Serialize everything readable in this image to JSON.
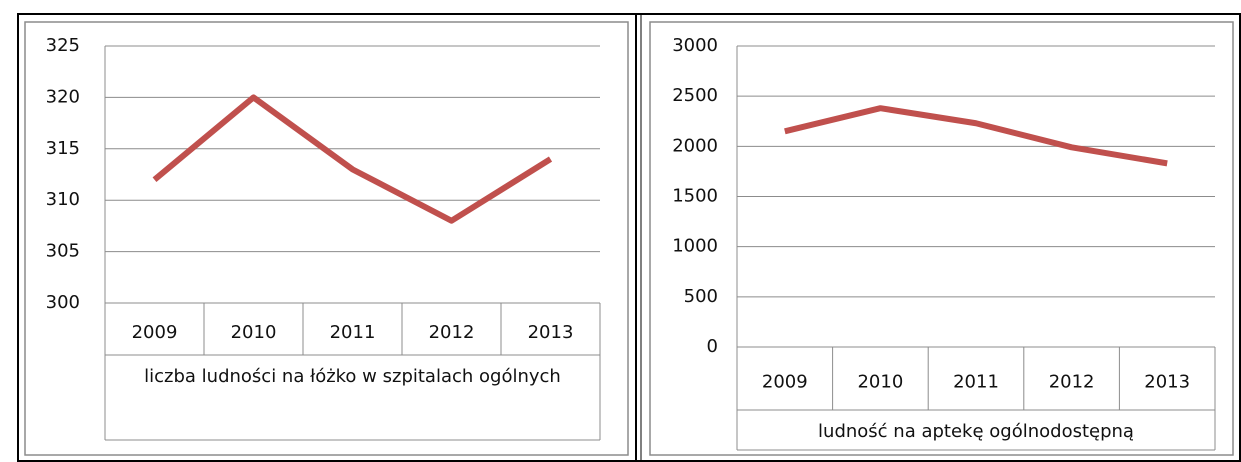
{
  "chart_data": [
    {
      "type": "line",
      "x_label": "liczba ludności na łóżko w szpitalach ogólnych",
      "categories": [
        "2009",
        "2010",
        "2011",
        "2012",
        "2013"
      ],
      "series": [
        {
          "color": "#c0504d",
          "values": [
            312,
            320,
            313,
            308,
            314
          ]
        }
      ],
      "ylim": [
        300,
        325
      ],
      "yticks": [
        300,
        305,
        310,
        315,
        320,
        325
      ],
      "grid": true
    },
    {
      "type": "line",
      "x_label": "ludność na aptekę ogólnodostępną",
      "categories": [
        "2009",
        "2010",
        "2011",
        "2012",
        "2013"
      ],
      "series": [
        {
          "color": "#c0504d",
          "values": [
            2150,
            2380,
            2230,
            1990,
            1830
          ]
        }
      ],
      "ylim": [
        0,
        3000
      ],
      "yticks": [
        0,
        500,
        1000,
        1500,
        2000,
        2500,
        3000
      ],
      "grid": true
    }
  ]
}
